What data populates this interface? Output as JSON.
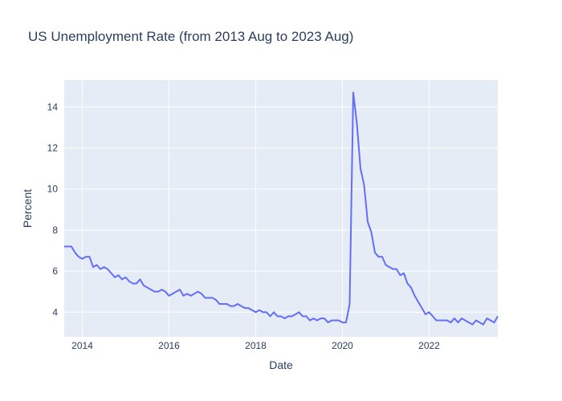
{
  "chart_data": {
    "type": "line",
    "title": "US Unemployment Rate (from 2013 Aug to 2023 Aug)",
    "xlabel": "Date",
    "ylabel": "Percent",
    "xlim": [
      "2013-08",
      "2023-08"
    ],
    "ylim": [
      2.8,
      15.3
    ],
    "x_ticks": [
      {
        "label": "2014",
        "date": "2014-01"
      },
      {
        "label": "2016",
        "date": "2016-01"
      },
      {
        "label": "2018",
        "date": "2018-01"
      },
      {
        "label": "2020",
        "date": "2020-01"
      },
      {
        "label": "2022",
        "date": "2022-01"
      }
    ],
    "y_ticks": [
      4,
      6,
      8,
      10,
      12,
      14
    ],
    "grid": true,
    "legend": "none",
    "colors": {
      "line": "#636efa",
      "plot_background": "#e5ecf6",
      "grid": "#ffffff",
      "text": "#2a3f5f"
    },
    "series": [
      {
        "x": [
          "2013-08",
          "2013-09",
          "2013-10",
          "2013-11",
          "2013-12",
          "2014-01",
          "2014-02",
          "2014-03",
          "2014-04",
          "2014-05",
          "2014-06",
          "2014-07",
          "2014-08",
          "2014-09",
          "2014-10",
          "2014-11",
          "2014-12",
          "2015-01",
          "2015-02",
          "2015-03",
          "2015-04",
          "2015-05",
          "2015-06",
          "2015-07",
          "2015-08",
          "2015-09",
          "2015-10",
          "2015-11",
          "2015-12",
          "2016-01",
          "2016-02",
          "2016-03",
          "2016-04",
          "2016-05",
          "2016-06",
          "2016-07",
          "2016-08",
          "2016-09",
          "2016-10",
          "2016-11",
          "2016-12",
          "2017-01",
          "2017-02",
          "2017-03",
          "2017-04",
          "2017-05",
          "2017-06",
          "2017-07",
          "2017-08",
          "2017-09",
          "2017-10",
          "2017-11",
          "2017-12",
          "2018-01",
          "2018-02",
          "2018-03",
          "2018-04",
          "2018-05",
          "2018-06",
          "2018-07",
          "2018-08",
          "2018-09",
          "2018-10",
          "2018-11",
          "2018-12",
          "2019-01",
          "2019-02",
          "2019-03",
          "2019-04",
          "2019-05",
          "2019-06",
          "2019-07",
          "2019-08",
          "2019-09",
          "2019-10",
          "2019-11",
          "2019-12",
          "2020-01",
          "2020-02",
          "2020-03",
          "2020-04",
          "2020-05",
          "2020-06",
          "2020-07",
          "2020-08",
          "2020-09",
          "2020-10",
          "2020-11",
          "2020-12",
          "2021-01",
          "2021-02",
          "2021-03",
          "2021-04",
          "2021-05",
          "2021-06",
          "2021-07",
          "2021-08",
          "2021-09",
          "2021-10",
          "2021-11",
          "2021-12",
          "2022-01",
          "2022-02",
          "2022-03",
          "2022-04",
          "2022-05",
          "2022-06",
          "2022-07",
          "2022-08",
          "2022-09",
          "2022-10",
          "2022-11",
          "2022-12",
          "2023-01",
          "2023-02",
          "2023-03",
          "2023-04",
          "2023-05",
          "2023-06",
          "2023-07",
          "2023-08"
        ],
        "y": [
          7.2,
          7.2,
          7.2,
          6.9,
          6.7,
          6.6,
          6.7,
          6.7,
          6.2,
          6.3,
          6.1,
          6.2,
          6.1,
          5.9,
          5.7,
          5.8,
          5.6,
          5.7,
          5.5,
          5.4,
          5.4,
          5.6,
          5.3,
          5.2,
          5.1,
          5.0,
          5.0,
          5.1,
          5.0,
          4.8,
          4.9,
          5.0,
          5.1,
          4.8,
          4.9,
          4.8,
          4.9,
          5.0,
          4.9,
          4.7,
          4.7,
          4.7,
          4.6,
          4.4,
          4.4,
          4.4,
          4.3,
          4.3,
          4.4,
          4.3,
          4.2,
          4.2,
          4.1,
          4.0,
          4.1,
          4.0,
          4.0,
          3.8,
          4.0,
          3.8,
          3.8,
          3.7,
          3.8,
          3.8,
          3.9,
          4.0,
          3.8,
          3.8,
          3.6,
          3.7,
          3.6,
          3.7,
          3.7,
          3.5,
          3.6,
          3.6,
          3.6,
          3.5,
          3.5,
          4.4,
          14.7,
          13.2,
          11.0,
          10.2,
          8.4,
          7.9,
          6.9,
          6.7,
          6.7,
          6.3,
          6.2,
          6.1,
          6.1,
          5.8,
          5.9,
          5.4,
          5.2,
          4.8,
          4.5,
          4.2,
          3.9,
          4.0,
          3.8,
          3.6,
          3.6,
          3.6,
          3.6,
          3.5,
          3.7,
          3.5,
          3.7,
          3.6,
          3.5,
          3.4,
          3.6,
          3.5,
          3.4,
          3.7,
          3.6,
          3.5,
          3.8
        ]
      }
    ]
  }
}
